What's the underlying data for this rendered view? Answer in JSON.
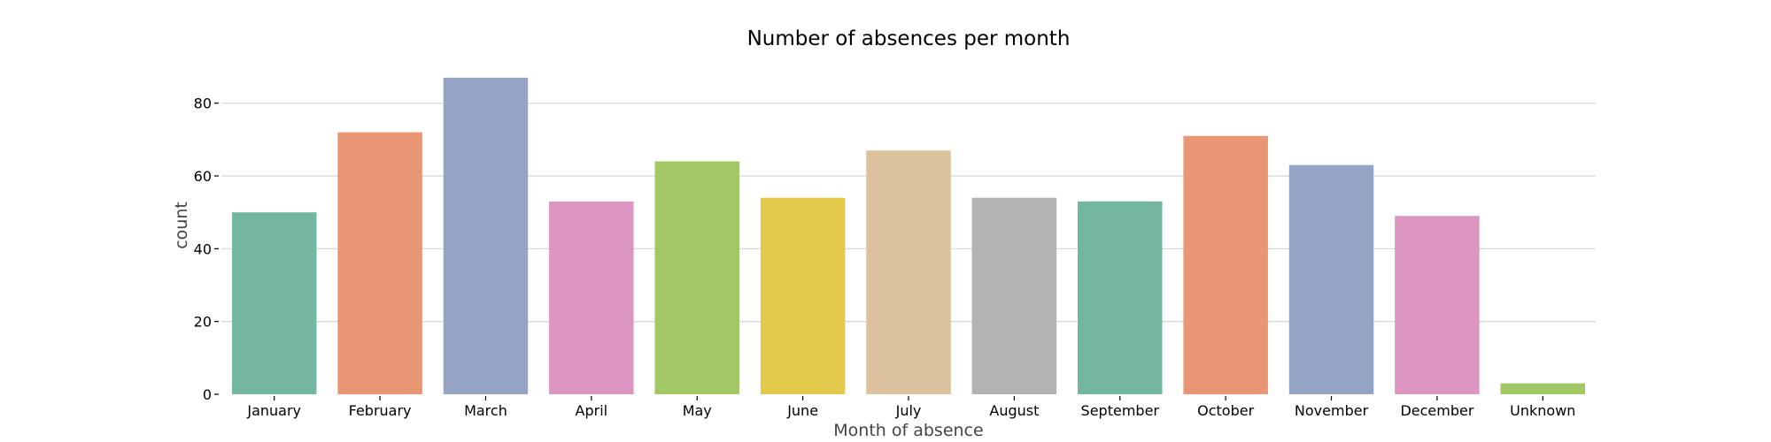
{
  "chart_data": {
    "type": "bar",
    "title": "Number of absences per month",
    "xlabel": "Month of absence",
    "ylabel": "count",
    "categories": [
      "January",
      "February",
      "March",
      "April",
      "May",
      "June",
      "July",
      "August",
      "September",
      "October",
      "November",
      "December",
      "Unknown"
    ],
    "values": [
      50,
      72,
      87,
      53,
      64,
      54,
      67,
      54,
      53,
      71,
      63,
      49,
      3
    ],
    "colors": [
      "#73b7a0",
      "#e89673",
      "#95a3c4",
      "#dc96c1",
      "#a2c865",
      "#e4ca4a",
      "#dbc29c",
      "#b3b3b3",
      "#73b7a0",
      "#e89673",
      "#95a3c4",
      "#dc96c1",
      "#a2c865"
    ],
    "yticks": [
      0,
      20,
      40,
      60,
      80
    ],
    "ylim": [
      0,
      91.35
    ],
    "grid": true,
    "legend": "none"
  }
}
